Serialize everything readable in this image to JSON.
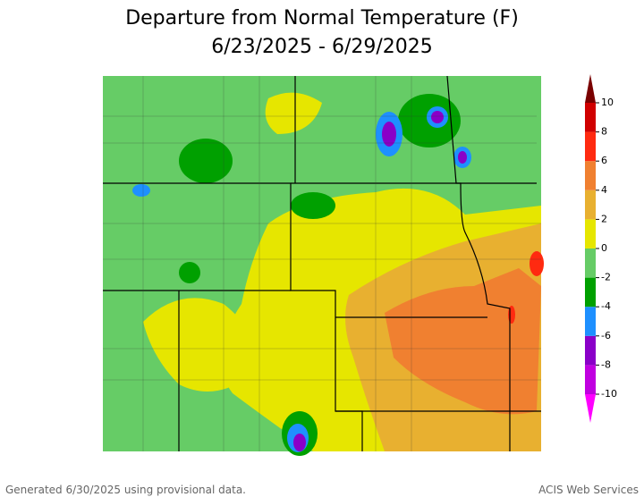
{
  "title": [
    "Departure from Normal Temperature (F)",
    "6/23/2025 - 6/29/2025"
  ],
  "legend": {
    "ticks": [
      -10,
      -8,
      -6,
      -4,
      -2,
      0,
      2,
      4,
      6,
      8,
      10
    ],
    "colors": [
      "#ff00ff",
      "#c000e0",
      "#8a00c8",
      "#1e90ff",
      "#00a000",
      "#66cc66",
      "#e6e600",
      "#e8b030",
      "#f08030",
      "#ff2a10",
      "#d00000",
      "#7a0000"
    ]
  },
  "footer": {
    "left": "Generated 6/30/2025 using provisional data.",
    "right": "ACIS Web Services"
  }
}
